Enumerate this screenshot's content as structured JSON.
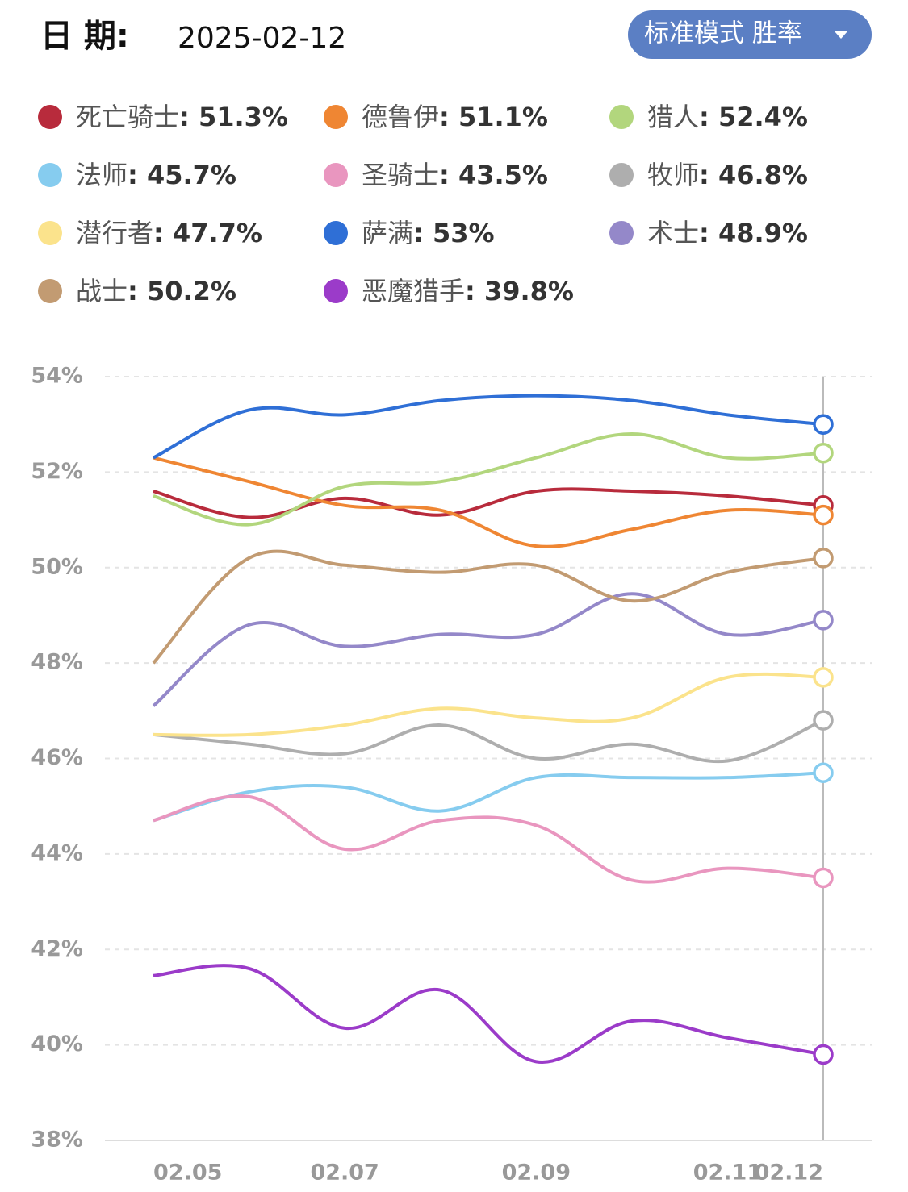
{
  "header": {
    "label": "日 期:",
    "date": "2025-02-12",
    "mode_button": "标准模式 胜率"
  },
  "chart_data": {
    "type": "line",
    "categories": [
      "02.05",
      null,
      "02.07",
      null,
      "02.09",
      null,
      "02.11",
      "02.12"
    ],
    "ylim": [
      38,
      54
    ],
    "yticks": [
      {
        "value": 38,
        "label": "38%"
      },
      {
        "value": 40,
        "label": "40%"
      },
      {
        "value": 42,
        "label": "42%"
      },
      {
        "value": 44,
        "label": "44%"
      },
      {
        "value": 46,
        "label": "46%"
      },
      {
        "value": 48,
        "label": "48%"
      },
      {
        "value": 50,
        "label": "50%"
      },
      {
        "value": 52,
        "label": "52%"
      },
      {
        "value": 54,
        "label": "54%"
      }
    ],
    "grid": true,
    "series": [
      {
        "name": "死亡骑士",
        "color": "#b82b3c",
        "legend_value": "51.3%",
        "values": [
          51.6,
          51.05,
          51.45,
          51.1,
          51.6,
          51.6,
          51.5,
          51.3
        ]
      },
      {
        "name": "德鲁伊",
        "color": "#ef8633",
        "legend_value": "51.1%",
        "values": [
          52.3,
          51.8,
          51.3,
          51.2,
          50.45,
          50.8,
          51.2,
          51.1
        ]
      },
      {
        "name": "猎人",
        "color": "#b2d67d",
        "legend_value": "52.4%",
        "values": [
          51.5,
          50.9,
          51.7,
          51.8,
          52.3,
          52.8,
          52.3,
          52.4
        ]
      },
      {
        "name": "法师",
        "color": "#86ccef",
        "legend_value": "45.7%",
        "values": [
          44.7,
          45.3,
          45.4,
          44.9,
          45.6,
          45.6,
          45.6,
          45.7
        ]
      },
      {
        "name": "圣骑士",
        "color": "#e996bf",
        "legend_value": "43.5%",
        "values": [
          44.7,
          45.2,
          44.1,
          44.7,
          44.6,
          43.45,
          43.7,
          43.5
        ]
      },
      {
        "name": "牧师",
        "color": "#aeaeae",
        "legend_value": "46.8%",
        "values": [
          46.5,
          46.3,
          46.1,
          46.7,
          46.0,
          46.3,
          45.95,
          46.8
        ]
      },
      {
        "name": "潜行者",
        "color": "#fbe38c",
        "legend_value": "47.7%",
        "values": [
          46.5,
          46.5,
          46.7,
          47.05,
          46.85,
          46.85,
          47.7,
          47.7
        ]
      },
      {
        "name": "萨满",
        "color": "#2f6fd6",
        "legend_value": "53%",
        "values": [
          52.3,
          53.3,
          53.2,
          53.5,
          53.6,
          53.5,
          53.2,
          53.0
        ]
      },
      {
        "name": "术士",
        "color": "#9488c9",
        "legend_value": "48.9%",
        "values": [
          47.1,
          48.8,
          48.35,
          48.6,
          48.6,
          49.45,
          48.6,
          48.9
        ]
      },
      {
        "name": "战士",
        "color": "#c29b72",
        "legend_value": "50.2%",
        "values": [
          48.0,
          50.2,
          50.05,
          49.9,
          50.05,
          49.3,
          49.9,
          50.2
        ]
      },
      {
        "name": "恶魔猎手",
        "color": "#9b3bc9",
        "legend_value": "39.8%",
        "values": [
          41.45,
          41.6,
          40.35,
          41.15,
          39.65,
          40.5,
          40.15,
          39.8
        ]
      }
    ]
  }
}
